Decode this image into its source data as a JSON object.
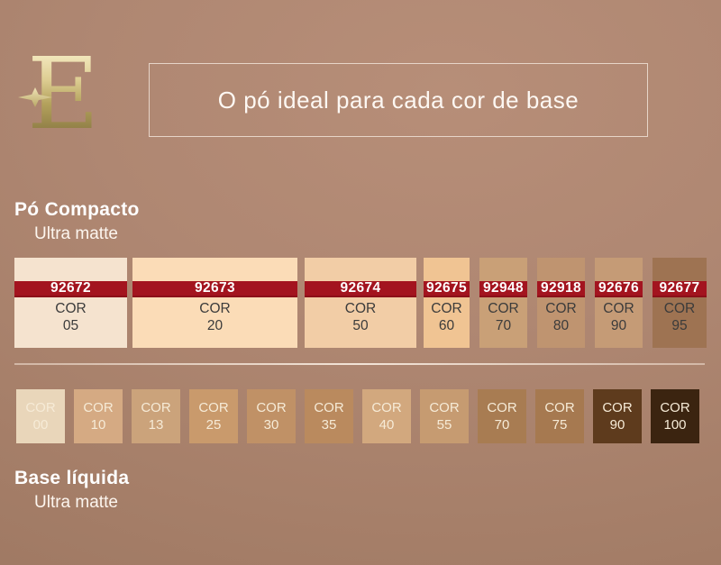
{
  "banner": {
    "title": "O pó ideal para cada cor de base"
  },
  "logo": {
    "letter": "E"
  },
  "sections": {
    "compact": {
      "title": "Pó Compacto",
      "subtitle": "Ultra matte"
    },
    "liquid": {
      "title": "Base líquida",
      "subtitle": "Ultra matte"
    }
  },
  "colors": {
    "band_red": "#a3141f",
    "band_red_edge": "#8c1019",
    "swatch_text_dark": "#3b3b3b",
    "swatch_text_light": "#f6ebd7",
    "divider": "#f3e3d5",
    "banner_border": "#f0e2d7",
    "gold_light": "#f6ecc4",
    "gold_dark": "#877641"
  },
  "compact_swatches": [
    {
      "code": "92672",
      "cor_label": "COR",
      "cor": "05",
      "bg": "#f5e3cf"
    },
    {
      "code": "92673",
      "cor_label": "COR",
      "cor": "20",
      "bg": "#fbdcb7"
    },
    {
      "code": "92674",
      "cor_label": "COR",
      "cor": "50",
      "bg": "#f2cda6"
    },
    {
      "code": "92675",
      "cor_label": "COR",
      "cor": "60",
      "bg": "#f0c493"
    },
    {
      "code": "92948",
      "cor_label": "COR",
      "cor": "70",
      "bg": "#c9a077"
    },
    {
      "code": "92918",
      "cor_label": "COR",
      "cor": "80",
      "bg": "#bf9470"
    },
    {
      "code": "92676",
      "cor_label": "COR",
      "cor": "90",
      "bg": "#c59b76"
    },
    {
      "code": "92677",
      "cor_label": "COR",
      "cor": "95",
      "bg": "#9e7352"
    }
  ],
  "liquid_swatches": [
    {
      "cor_label": "COR",
      "cor": "00",
      "bg": "#e9d6ba"
    },
    {
      "cor_label": "COR",
      "cor": "10",
      "bg": "#d5aa83"
    },
    {
      "cor_label": "COR",
      "cor": "13",
      "bg": "#cba37b"
    },
    {
      "cor_label": "COR",
      "cor": "25",
      "bg": "#c99a6c"
    },
    {
      "cor_label": "COR",
      "cor": "30",
      "bg": "#c09166"
    },
    {
      "cor_label": "COR",
      "cor": "35",
      "bg": "#ba8a5e"
    },
    {
      "cor_label": "COR",
      "cor": "40",
      "bg": "#d2a87e"
    },
    {
      "cor_label": "COR",
      "cor": "55",
      "bg": "#c69b71"
    },
    {
      "cor_label": "COR",
      "cor": "70",
      "bg": "#a87c52"
    },
    {
      "cor_label": "COR",
      "cor": "75",
      "bg": "#a67950"
    },
    {
      "cor_label": "COR",
      "cor": "90",
      "bg": "#5e3b1d"
    },
    {
      "cor_label": "COR",
      "cor": "100",
      "bg": "#3b2410"
    }
  ]
}
